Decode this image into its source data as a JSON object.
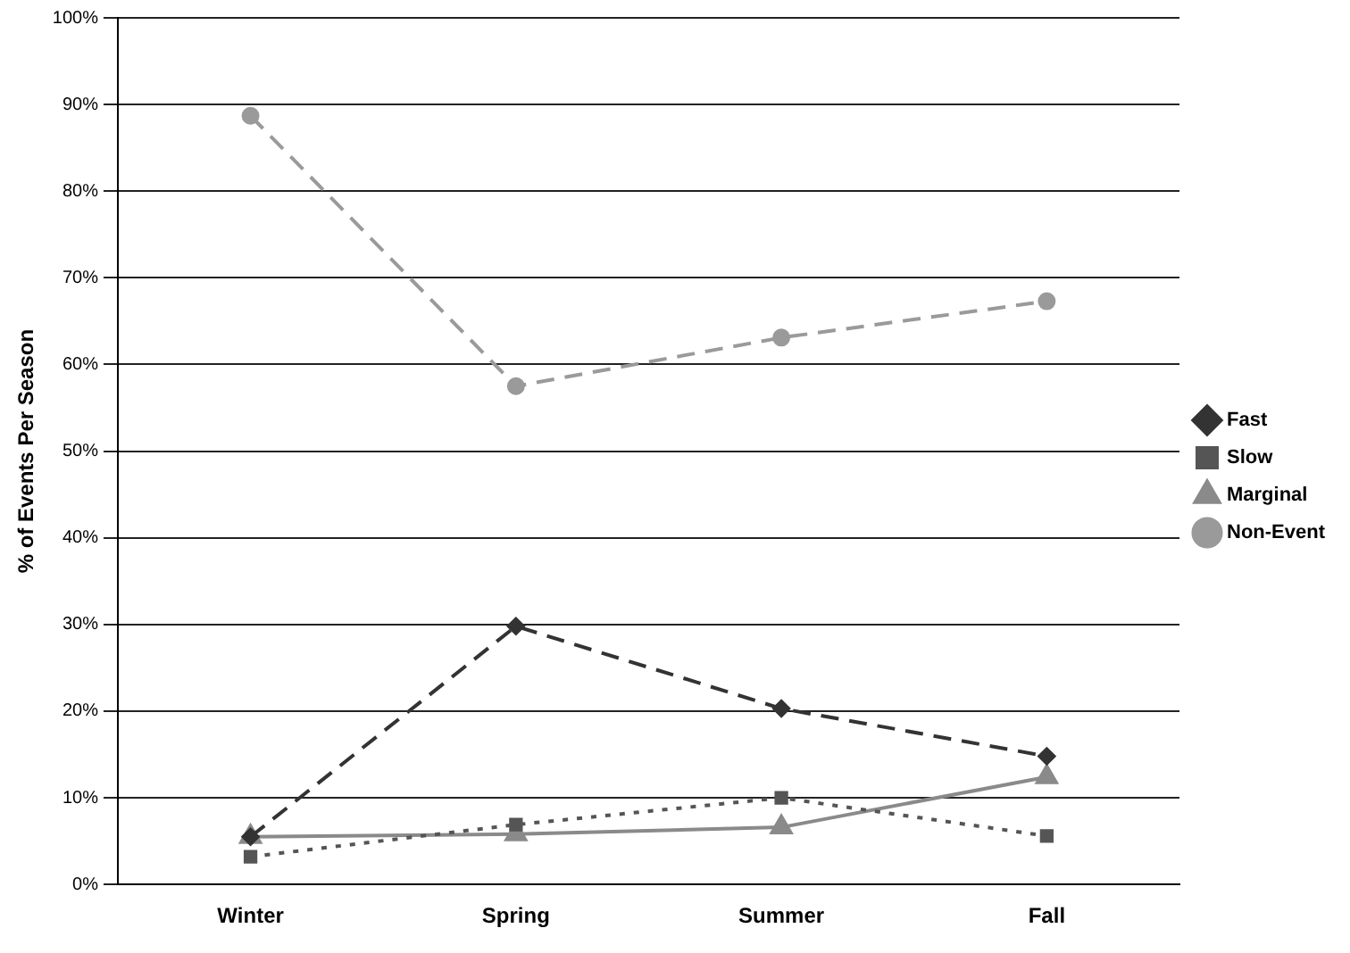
{
  "chart_data": {
    "type": "line",
    "ylabel": "% of Events Per Season",
    "categories": [
      "Winter",
      "Spring",
      "Summer",
      "Fall"
    ],
    "series": [
      {
        "name": "Fast",
        "color": "#333333",
        "values": [
          5.5,
          29.8,
          20.3,
          14.8
        ],
        "marker": "diamond",
        "line_style": "dashed"
      },
      {
        "name": "Slow",
        "color": "#555555",
        "values": [
          3.2,
          6.9,
          10,
          5.6
        ],
        "marker": "square",
        "line_style": "dotted"
      },
      {
        "name": "Marginal",
        "color": "#8a8a8a",
        "values": [
          5.5,
          5.8,
          6.6,
          12.4
        ],
        "marker": "triangle",
        "line_style": "solid"
      },
      {
        "name": "Non-Event",
        "color": "#9a9a9a",
        "values": [
          88.7,
          57.5,
          63.1,
          67.3
        ],
        "marker": "circle",
        "line_style": "dashed"
      }
    ],
    "ylim": [
      0,
      100
    ],
    "yticks": [
      {
        "value": 0,
        "label": "0%"
      },
      {
        "value": 10,
        "label": "10%"
      },
      {
        "value": 20,
        "label": "20%"
      },
      {
        "value": 30,
        "label": "30%"
      },
      {
        "value": 40,
        "label": "40%"
      },
      {
        "value": 50,
        "label": "50%"
      },
      {
        "value": 60,
        "label": "60%"
      },
      {
        "value": 70,
        "label": "70%"
      },
      {
        "value": 80,
        "label": "80%"
      },
      {
        "value": 90,
        "label": "90%"
      },
      {
        "value": 100,
        "label": "100%"
      }
    ],
    "grid": "y",
    "legend": "right"
  }
}
